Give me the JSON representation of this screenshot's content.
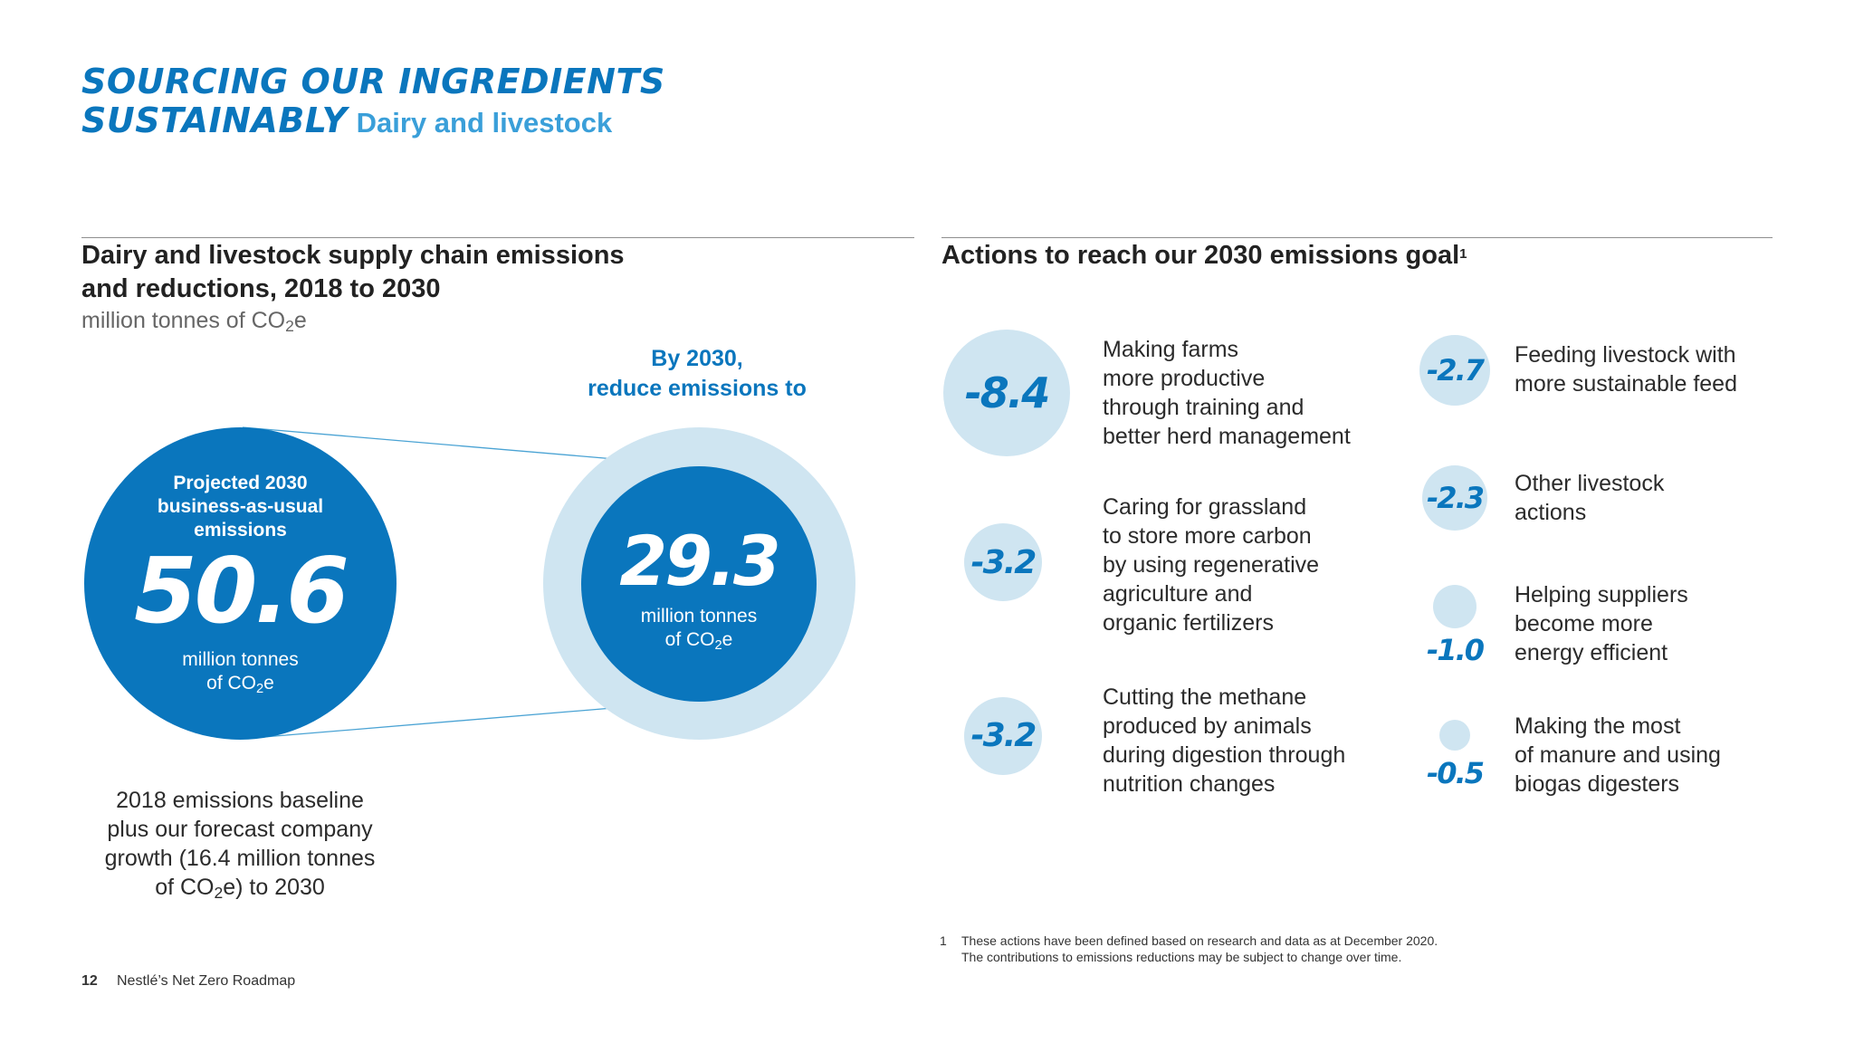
{
  "header": {
    "title_line1": "SOURCING OUR INGREDIENTS",
    "title_line2": "SUSTAINABLY",
    "subtitle": "Dairy and livestock"
  },
  "left": {
    "section_title_line1": "Dairy and livestock supply chain emissions",
    "section_title_line2": "and reductions, 2018 to 2030",
    "unit_prefix": "million tonnes of CO",
    "unit_sub": "2",
    "unit_suffix": "e",
    "projected": {
      "label_line1": "Projected 2030",
      "label_line2": "business-as-usual",
      "label_line3": "emissions",
      "value": "50.6",
      "unit_line1": "million tonnes",
      "unit_line2_prefix": "of CO",
      "unit_line2_sub": "2",
      "unit_line2_suffix": "e"
    },
    "target": {
      "heading_line1": "By 2030,",
      "heading_line2": "reduce emissions to",
      "value": "29.3",
      "unit_line1": "million tonnes",
      "unit_line2_prefix": "of CO",
      "unit_line2_sub": "2",
      "unit_line2_suffix": "e"
    },
    "baseline_note": {
      "line1": "2018 emissions baseline",
      "line2": "plus our forecast company",
      "line3": "growth (16.4 million tonnes",
      "line4_prefix": "of CO",
      "line4_sub": "2",
      "line4_suffix": "e) to 2030"
    }
  },
  "right": {
    "section_title": "Actions to reach our 2030 emissions goal",
    "footnote_marker": "1",
    "actions": [
      {
        "value": "-8.4",
        "line1": "Making farms",
        "line2": "more productive",
        "line3": "through training and",
        "line4": "better herd management"
      },
      {
        "value": "-3.2",
        "line1": "Caring for grassland",
        "line2": "to store more carbon",
        "line3": "by using regenerative",
        "line4": "agriculture and",
        "line5": "organic fertilizers"
      },
      {
        "value": "-3.2",
        "line1": "Cutting the methane",
        "line2": "produced by animals",
        "line3": "during digestion through",
        "line4": "nutrition changes"
      },
      {
        "value": "-2.7",
        "line1": "Feeding livestock with",
        "line2": "more sustainable feed"
      },
      {
        "value": "-2.3",
        "line1": "Other livestock",
        "line2": "actions"
      },
      {
        "value": "-1.0",
        "line1": "Helping suppliers",
        "line2": "become more",
        "line3": "energy efficient"
      },
      {
        "value": "-0.5",
        "line1": "Making the most",
        "line2": "of manure and using",
        "line3": "biogas digesters"
      }
    ],
    "footnote": {
      "number": "1",
      "line1": "These actions have been defined based on research and data as at December 2020.",
      "line2": "The contributions to emissions reductions may be subject to change over time."
    }
  },
  "footer": {
    "page_number": "12",
    "doc_title": "Nestlé’s Net Zero Roadmap"
  },
  "colors": {
    "brand_blue": "#0a76bd",
    "light_blue": "#3a9fd9",
    "pale_blue": "#cfe5f1"
  }
}
